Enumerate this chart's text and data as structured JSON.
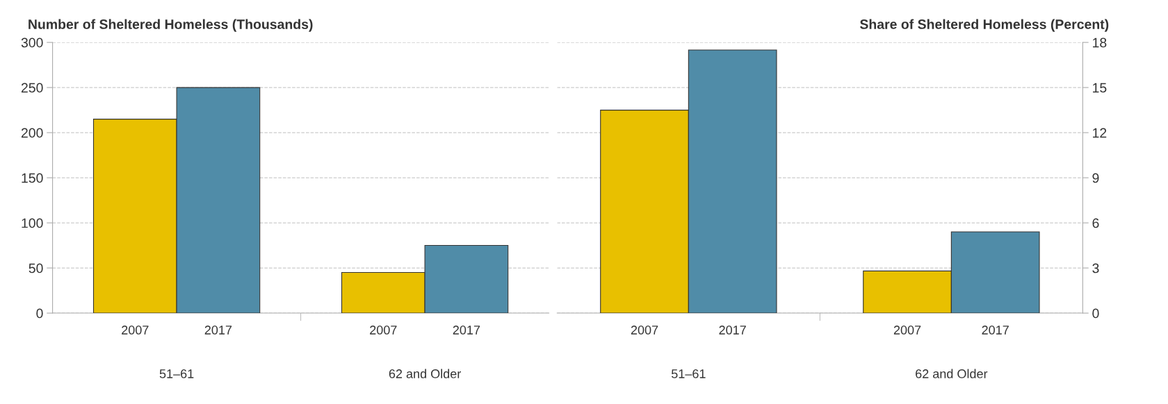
{
  "chart_data": [
    {
      "type": "bar",
      "title": "Number of Sheltered Homeless (Thousands)",
      "categories": [
        "51–61",
        "62 and Older"
      ],
      "series": [
        {
          "name": "2007",
          "color": "#e8c000",
          "values": [
            215,
            45
          ]
        },
        {
          "name": "2017",
          "color": "#508ca8",
          "values": [
            250,
            75
          ]
        }
      ],
      "ylim": [
        0,
        300
      ],
      "yticks": [
        0,
        50,
        100,
        150,
        200,
        250,
        300
      ],
      "grid": "y",
      "legend": false
    },
    {
      "type": "bar",
      "title": "Share of Sheltered Homeless (Percent)",
      "categories": [
        "51–61",
        "62 and Older"
      ],
      "series": [
        {
          "name": "2007",
          "color": "#e8c000",
          "values": [
            13.5,
            2.8
          ],
          "axis": "y2"
        },
        {
          "name": "2017",
          "color": "#508ca8",
          "values": [
            17.5,
            5.4
          ],
          "axis": "y2"
        }
      ],
      "y2lim": [
        0,
        18
      ],
      "y2ticks": [
        0,
        3,
        6,
        9,
        12,
        15,
        18
      ],
      "grid": "y",
      "legend": false
    }
  ]
}
